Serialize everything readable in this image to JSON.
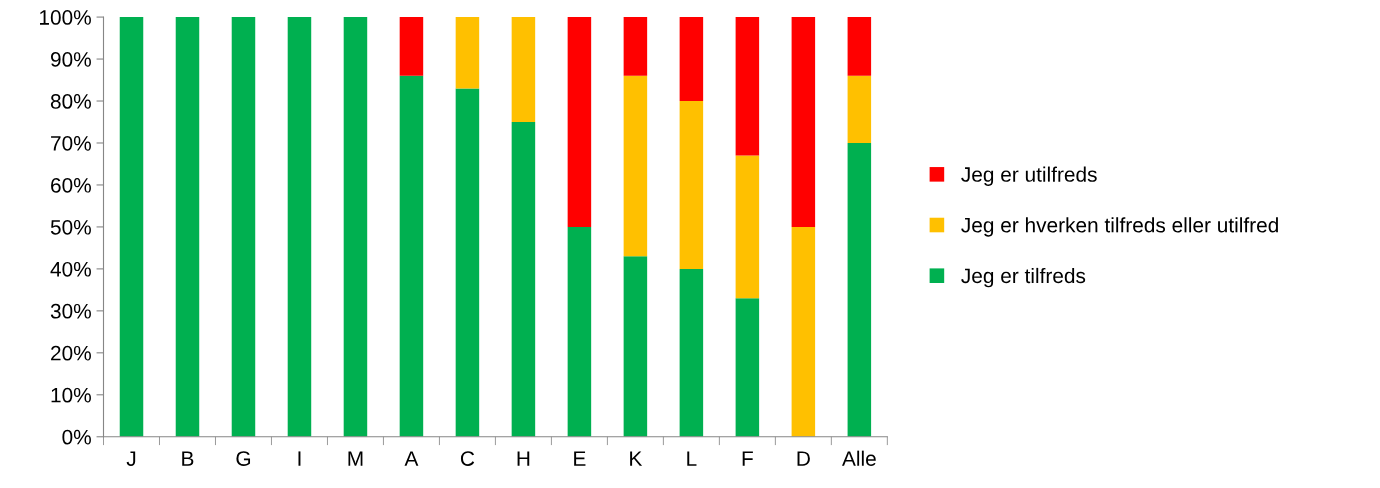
{
  "chart_data": {
    "type": "bar",
    "stacked": true,
    "categories": [
      "J",
      "B",
      "G",
      "I",
      "M",
      "A",
      "C",
      "H",
      "E",
      "K",
      "L",
      "F",
      "D",
      "Alle"
    ],
    "series": [
      {
        "name": "Jeg er tilfreds",
        "color": "#00b050",
        "values": [
          100,
          100,
          100,
          100,
          100,
          86,
          83,
          75,
          50,
          43,
          40,
          33,
          0,
          70
        ]
      },
      {
        "name": "Jeg er hverken tilfreds eller utilfred",
        "color": "#ffc000",
        "values": [
          0,
          0,
          0,
          0,
          0,
          0,
          17,
          25,
          0,
          43,
          40,
          34,
          50,
          16
        ]
      },
      {
        "name": "Jeg er utilfreds",
        "color": "#ff0000",
        "values": [
          0,
          0,
          0,
          0,
          0,
          14,
          0,
          0,
          50,
          14,
          20,
          33,
          50,
          14
        ]
      }
    ],
    "ylim": [
      0,
      100
    ],
    "yticks": [
      {
        "value": 0,
        "label": "0%"
      },
      {
        "value": 10,
        "label": "10%"
      },
      {
        "value": 20,
        "label": "20%"
      },
      {
        "value": 30,
        "label": "30%"
      },
      {
        "value": 40,
        "label": "40%"
      },
      {
        "value": 50,
        "label": "50%"
      },
      {
        "value": 60,
        "label": "60%"
      },
      {
        "value": 70,
        "label": "70%"
      },
      {
        "value": 80,
        "label": "80%"
      },
      {
        "value": 90,
        "label": "90%"
      },
      {
        "value": 100,
        "label": "100%"
      }
    ],
    "grid": false,
    "legend": "right"
  }
}
